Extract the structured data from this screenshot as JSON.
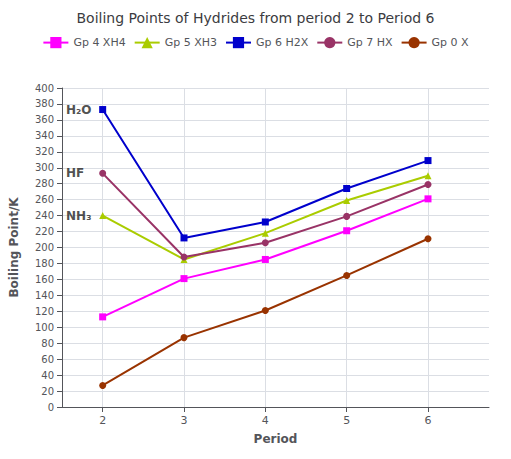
{
  "chart_data": {
    "type": "line",
    "title": "Boiling Points of Hydrides from period 2 to Period 6",
    "xlabel": "Period",
    "ylabel": "Boiling Point/K",
    "xlim": [
      1.5,
      6.75
    ],
    "ylim": [
      0,
      400
    ],
    "xticks": [
      2,
      3,
      4,
      5,
      6
    ],
    "yticks": [
      0,
      20,
      40,
      60,
      80,
      100,
      120,
      140,
      160,
      180,
      200,
      220,
      240,
      260,
      280,
      300,
      320,
      340,
      360,
      380,
      400
    ],
    "x": [
      2,
      3,
      4,
      5,
      6
    ],
    "series": [
      {
        "name": "Gp 4 XH4",
        "color": "#ff00ff",
        "marker": "square",
        "values": [
          113,
          161,
          185,
          221,
          261
        ]
      },
      {
        "name": "Gp 5 XH3",
        "color": "#aacc00",
        "marker": "triangle",
        "values": [
          240,
          185,
          218,
          259,
          290
        ]
      },
      {
        "name": "Gp 6 H2X",
        "color": "#0000cc",
        "marker": "square",
        "values": [
          373,
          212,
          232,
          274,
          309
        ]
      },
      {
        "name": "Gp 7 HX",
        "color": "#993366",
        "marker": "circle",
        "values": [
          293,
          188,
          206,
          239,
          279
        ]
      },
      {
        "name": "Gp 0 X",
        "color": "#993300",
        "marker": "circle",
        "values": [
          27,
          87,
          121,
          165,
          211
        ]
      }
    ],
    "annotations": [
      {
        "text": "H₂O",
        "x": 1.55,
        "y": 373
      },
      {
        "text": "HF",
        "x": 1.55,
        "y": 293
      },
      {
        "text": "NH₃",
        "x": 1.55,
        "y": 240
      }
    ],
    "grid": true,
    "legend": "top"
  }
}
